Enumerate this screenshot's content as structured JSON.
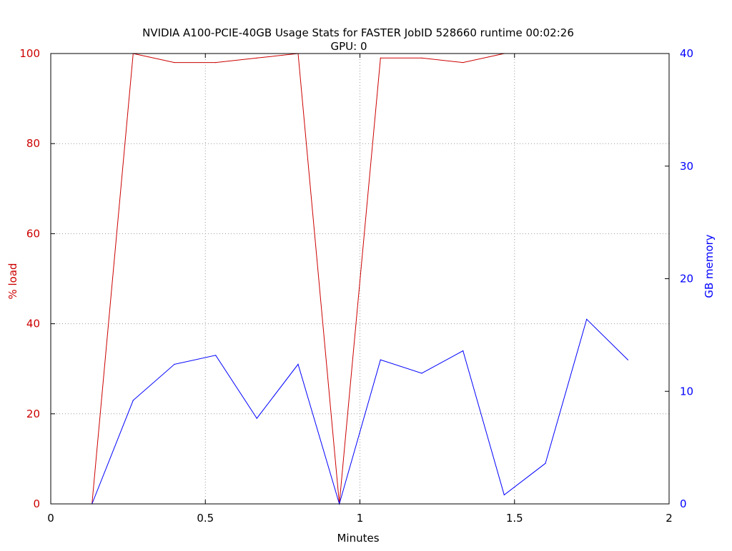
{
  "chart_data": {
    "type": "line",
    "title": "NVIDIA A100-PCIE-40GB Usage Stats for FASTER JobID 528660  runtime 00:02:26",
    "subtitle": "GPU: 0",
    "xlabel": "Minutes",
    "ylabel_left": "% load",
    "ylabel_right": "GB memory",
    "xlim": [
      0,
      2
    ],
    "ylim_left": [
      0,
      100
    ],
    "ylim_right": [
      0,
      40
    ],
    "x_ticks": [
      0,
      0.5,
      1,
      1.5,
      2
    ],
    "x_tick_labels": [
      "0",
      "0.5",
      "1",
      "1.5",
      "2"
    ],
    "y_left_ticks": [
      0,
      20,
      40,
      60,
      80,
      100
    ],
    "y_left_tick_labels": [
      "0",
      "20",
      "40",
      "60",
      "80",
      "100"
    ],
    "y_right_ticks": [
      0,
      10,
      20,
      30,
      40
    ],
    "y_right_tick_labels": [
      "0",
      "10",
      "20",
      "30",
      "40"
    ],
    "grid": true,
    "colors": {
      "load": "#cc0000",
      "memory": "#0000ff",
      "grid": "#999999",
      "axis": "#000000"
    },
    "series": [
      {
        "axis": "left",
        "color": "#cc0000",
        "x": [
          0.1333,
          0.2667,
          0.4,
          0.5333,
          0.6667,
          0.8,
          0.9333,
          1.0667,
          1.2,
          1.3333,
          1.4667
        ],
        "y": [
          0,
          100,
          98,
          98,
          99,
          100,
          0,
          99,
          99,
          98,
          100
        ]
      },
      {
        "axis": "right",
        "color": "#0000ff",
        "x": [
          0.1333,
          0.2667,
          0.4,
          0.5333,
          0.6667,
          0.8,
          0.9333,
          1.0667,
          1.2,
          1.3333,
          1.4667,
          1.6,
          1.7333,
          1.8667
        ],
        "y": [
          0,
          9.2,
          12.4,
          13.2,
          7.6,
          12.4,
          0,
          12.8,
          11.6,
          13.6,
          0.8,
          3.6,
          16.4,
          12.8
        ]
      }
    ]
  }
}
